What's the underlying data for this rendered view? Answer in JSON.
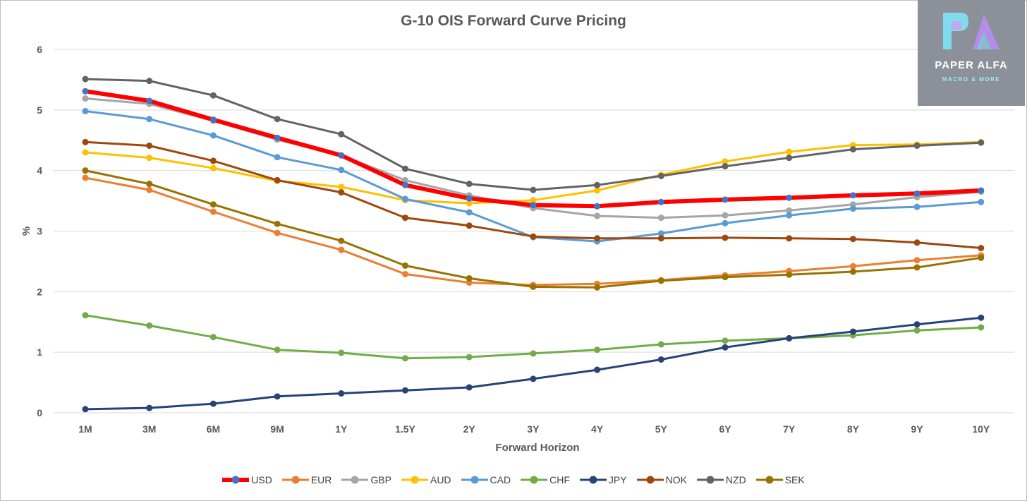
{
  "chart_data": {
    "type": "line",
    "title": "G-10 OIS Forward Curve Pricing",
    "xlabel": "Forward Horizon",
    "ylabel": "%",
    "ylim": [
      0,
      6
    ],
    "yticks": [
      "0",
      "1",
      "2",
      "3",
      "4",
      "5",
      "6"
    ],
    "grid": "horizontal",
    "legend_position": "bottom",
    "categories": [
      "1M",
      "3M",
      "6M",
      "9M",
      "1Y",
      "1.5Y",
      "2Y",
      "3Y",
      "4Y",
      "5Y",
      "6Y",
      "7Y",
      "8Y",
      "9Y",
      "10Y"
    ],
    "series": [
      {
        "name": "USD",
        "color": "#ff0000",
        "marker": "#4472c4",
        "width": 6,
        "values": [
          5.31,
          5.15,
          4.84,
          4.54,
          4.25,
          3.76,
          3.54,
          3.43,
          3.41,
          3.48,
          3.52,
          3.55,
          3.59,
          3.62,
          3.67
        ]
      },
      {
        "name": "EUR",
        "color": "#ed7d31",
        "marker": "#ed7d31",
        "width": 3,
        "values": [
          3.88,
          3.68,
          3.32,
          2.97,
          2.69,
          2.29,
          2.15,
          2.11,
          2.13,
          2.19,
          2.27,
          2.34,
          2.42,
          2.52,
          2.6
        ]
      },
      {
        "name": "GBP",
        "color": "#a5a5a5",
        "marker": "#a5a5a5",
        "width": 3,
        "values": [
          5.19,
          5.1,
          4.82,
          4.51,
          4.25,
          3.84,
          3.59,
          3.38,
          3.25,
          3.22,
          3.26,
          3.34,
          3.44,
          3.56,
          3.65
        ]
      },
      {
        "name": "AUD",
        "color": "#ffc000",
        "marker": "#ffc000",
        "width": 3,
        "values": [
          4.3,
          4.21,
          4.04,
          3.83,
          3.73,
          3.51,
          3.46,
          3.51,
          3.67,
          3.93,
          4.15,
          4.31,
          4.42,
          4.43,
          4.47
        ]
      },
      {
        "name": "CAD",
        "color": "#5b9bd5",
        "marker": "#5b9bd5",
        "width": 3,
        "values": [
          4.98,
          4.85,
          4.58,
          4.22,
          4.01,
          3.53,
          3.31,
          2.9,
          2.83,
          2.96,
          3.13,
          3.26,
          3.37,
          3.4,
          3.48
        ]
      },
      {
        "name": "CHF",
        "color": "#70ad47",
        "marker": "#70ad47",
        "width": 3,
        "values": [
          1.61,
          1.44,
          1.25,
          1.04,
          0.99,
          0.9,
          0.92,
          0.98,
          1.04,
          1.13,
          1.19,
          1.23,
          1.28,
          1.36,
          1.41
        ]
      },
      {
        "name": "JPY",
        "color": "#264478",
        "marker": "#264478",
        "width": 3,
        "values": [
          0.06,
          0.08,
          0.15,
          0.27,
          0.32,
          0.37,
          0.42,
          0.56,
          0.71,
          0.88,
          1.08,
          1.23,
          1.34,
          1.46,
          1.57
        ]
      },
      {
        "name": "NOK",
        "color": "#9e480e",
        "marker": "#9e480e",
        "width": 3,
        "values": [
          4.47,
          4.41,
          4.16,
          3.84,
          3.64,
          3.22,
          3.09,
          2.91,
          2.88,
          2.88,
          2.89,
          2.88,
          2.87,
          2.81,
          2.72
        ]
      },
      {
        "name": "NZD",
        "color": "#636363",
        "marker": "#636363",
        "width": 3,
        "values": [
          5.51,
          5.48,
          5.24,
          4.85,
          4.6,
          4.03,
          3.78,
          3.68,
          3.76,
          3.91,
          4.07,
          4.21,
          4.35,
          4.41,
          4.46
        ]
      },
      {
        "name": "SEK",
        "color": "#997300",
        "marker": "#997300",
        "width": 3,
        "values": [
          4.0,
          3.78,
          3.44,
          3.12,
          2.84,
          2.43,
          2.22,
          2.08,
          2.07,
          2.18,
          2.24,
          2.28,
          2.33,
          2.4,
          2.56
        ]
      }
    ]
  },
  "watermark": {
    "name": "PAPER ALFA",
    "tagline": "MACRO & MORE",
    "background": "#8c9099",
    "accent_colors": [
      "#7de4f7",
      "#c9a2f0",
      "#b98cf2"
    ]
  }
}
